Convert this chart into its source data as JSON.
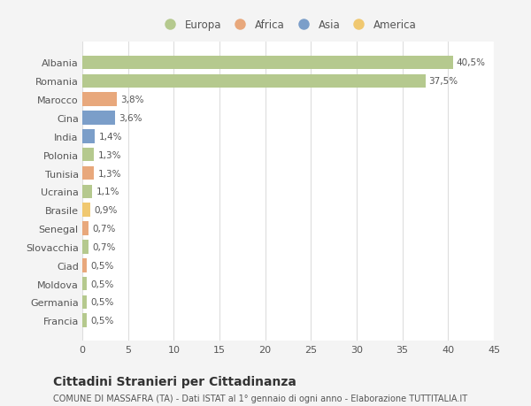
{
  "categories": [
    "Francia",
    "Germania",
    "Moldova",
    "Ciad",
    "Slovacchia",
    "Senegal",
    "Brasile",
    "Ucraina",
    "Tunisia",
    "Polonia",
    "India",
    "Cina",
    "Marocco",
    "Romania",
    "Albania"
  ],
  "values": [
    0.5,
    0.5,
    0.5,
    0.5,
    0.7,
    0.7,
    0.9,
    1.1,
    1.3,
    1.3,
    1.4,
    3.6,
    3.8,
    37.5,
    40.5
  ],
  "labels": [
    "0,5%",
    "0,5%",
    "0,5%",
    "0,5%",
    "0,7%",
    "0,7%",
    "0,9%",
    "1,1%",
    "1,3%",
    "1,3%",
    "1,4%",
    "3,6%",
    "3,8%",
    "37,5%",
    "40,5%"
  ],
  "colors": [
    "#b5c98e",
    "#b5c98e",
    "#b5c98e",
    "#e8a87c",
    "#b5c98e",
    "#e8a87c",
    "#f0c870",
    "#b5c98e",
    "#e8a87c",
    "#b5c98e",
    "#7b9ec9",
    "#7b9ec9",
    "#e8a87c",
    "#b5c98e",
    "#b5c98e"
  ],
  "legend_labels": [
    "Europa",
    "Africa",
    "Asia",
    "America"
  ],
  "legend_colors": [
    "#b5c98e",
    "#e8a87c",
    "#7b9ec9",
    "#f0c870"
  ],
  "title": "Cittadini Stranieri per Cittadinanza",
  "subtitle": "COMUNE DI MASSAFRA (TA) - Dati ISTAT al 1° gennaio di ogni anno - Elaborazione TUTTITALIA.IT",
  "xlim": [
    0,
    45
  ],
  "xticks": [
    0,
    5,
    10,
    15,
    20,
    25,
    30,
    35,
    40,
    45
  ],
  "bg_color": "#f4f4f4",
  "plot_bg_color": "#ffffff",
  "grid_color": "#dddddd",
  "text_color": "#555555",
  "bar_height": 0.75,
  "label_fontsize": 7.5,
  "tick_fontsize": 8,
  "title_fontsize": 10,
  "subtitle_fontsize": 7
}
